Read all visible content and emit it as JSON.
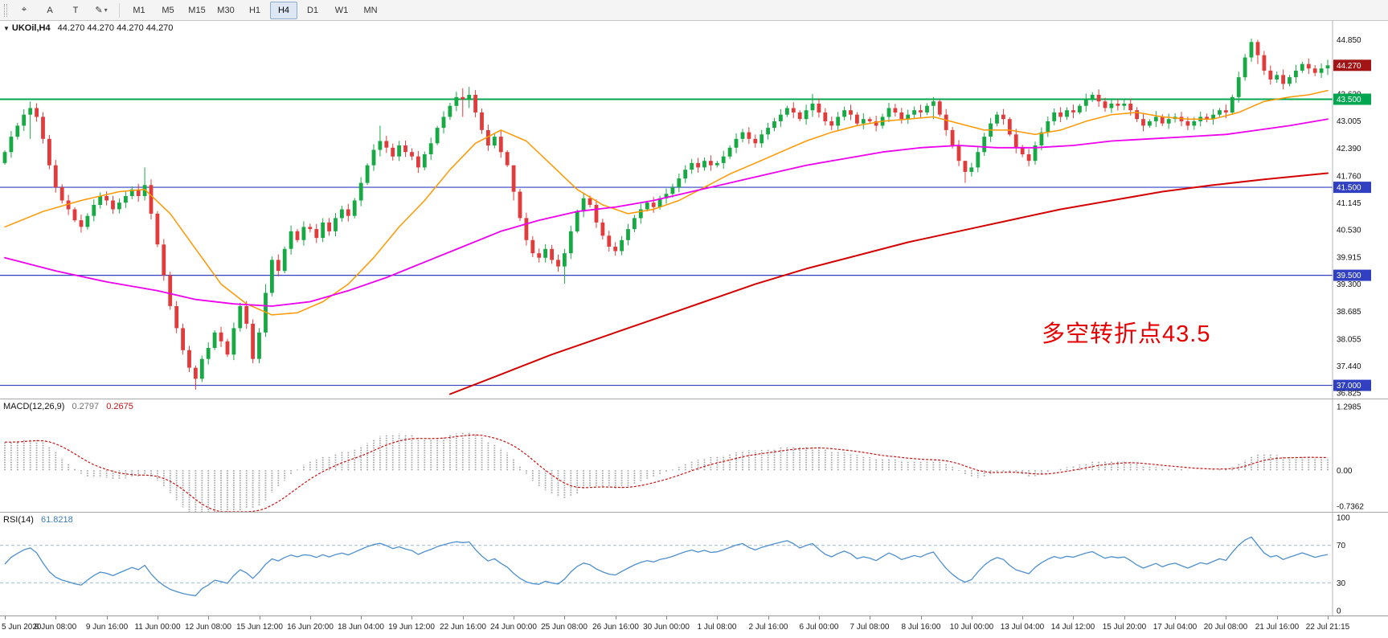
{
  "toolbar": {
    "left_buttons": [
      {
        "name": "crosshair-button",
        "glyph": "⌖"
      },
      {
        "name": "text-label-button",
        "glyph": "A"
      },
      {
        "name": "text-tool-button",
        "glyph": "T"
      },
      {
        "name": "draw-tools-button",
        "glyph": "✎",
        "caret": "▾"
      }
    ],
    "timeframes": [
      "M1",
      "M5",
      "M15",
      "M30",
      "H1",
      "H4",
      "D1",
      "W1",
      "MN"
    ],
    "active_timeframe": "H4"
  },
  "chart_header": {
    "collapse_icon": "▼",
    "symbol": "UKOil,H4",
    "ohlc": "44.270 44.270 44.270 44.270"
  },
  "annotation": {
    "text": "多空转折点43.5",
    "color": "#e60000"
  },
  "colors": {
    "up": "#17a944",
    "down": "#e23b3b",
    "ma_fast": "#ff9800",
    "ma_mid": "#ee00ee",
    "ma_slow": "#d40000",
    "line_blue": "#3040c0",
    "line_green": "#00a650",
    "box_current": "#a31515",
    "box_green": "#00a650",
    "box_blue": "#3040c0",
    "macd_hist": "#a0a0a0",
    "macd_signal": "#cc1111",
    "rsi_line": "#4e8fce",
    "rsi_level": "#9db9d6",
    "axis_text": "#111111"
  },
  "chart_data": {
    "type": "candlestick",
    "symbol": "UKOil",
    "timeframe": "H4",
    "current_price": "44.270",
    "price_range": [
      36.7,
      45.28
    ],
    "price_axis_labels": [
      {
        "text": "44.850",
        "price": 44.85,
        "style": "plain"
      },
      {
        "text": "44.270",
        "price": 44.27,
        "style": "current"
      },
      {
        "text": "43.620",
        "price": 43.62,
        "style": "plain"
      },
      {
        "text": "43.500",
        "price": 43.5,
        "style": "green"
      },
      {
        "text": "43.005",
        "price": 43.005,
        "style": "plain"
      },
      {
        "text": "42.390",
        "price": 42.39,
        "style": "plain"
      },
      {
        "text": "41.760",
        "price": 41.76,
        "style": "plain"
      },
      {
        "text": "41.500",
        "price": 41.5,
        "style": "blue"
      },
      {
        "text": "41.145",
        "price": 41.145,
        "style": "plain"
      },
      {
        "text": "40.530",
        "price": 40.53,
        "style": "plain"
      },
      {
        "text": "39.915",
        "price": 39.915,
        "style": "plain"
      },
      {
        "text": "39.500",
        "price": 39.5,
        "style": "blue"
      },
      {
        "text": "39.300",
        "price": 39.3,
        "style": "plain"
      },
      {
        "text": "38.685",
        "price": 38.685,
        "style": "plain"
      },
      {
        "text": "38.055",
        "price": 38.055,
        "style": "plain"
      },
      {
        "text": "37.440",
        "price": 37.44,
        "style": "plain"
      },
      {
        "text": "37.000",
        "price": 37.0,
        "style": "blue"
      },
      {
        "text": "36.825",
        "price": 36.825,
        "style": "plain"
      }
    ],
    "hlines": [
      {
        "price": 43.5,
        "style": "green",
        "width": 2
      },
      {
        "price": 41.5,
        "style": "blue",
        "width": 1.2
      },
      {
        "price": 39.5,
        "style": "blue",
        "width": 1.2
      },
      {
        "price": 37.0,
        "style": "blue",
        "width": 1.2
      }
    ],
    "candles_closes": [
      42.3,
      42.65,
      42.9,
      43.15,
      43.3,
      43.1,
      42.6,
      42.0,
      41.5,
      41.2,
      41.0,
      40.75,
      40.6,
      40.85,
      41.1,
      41.3,
      41.2,
      41.0,
      41.15,
      41.3,
      41.45,
      41.3,
      41.55,
      40.9,
      40.2,
      39.5,
      38.8,
      38.3,
      37.8,
      37.4,
      37.15,
      37.6,
      37.85,
      38.2,
      38.0,
      37.7,
      38.3,
      38.8,
      38.4,
      37.6,
      38.2,
      39.1,
      39.85,
      39.6,
      40.1,
      40.5,
      40.3,
      40.6,
      40.55,
      40.35,
      40.7,
      40.5,
      40.8,
      41.0,
      40.85,
      41.2,
      41.6,
      42.0,
      42.35,
      42.55,
      42.4,
      42.2,
      42.45,
      42.3,
      42.2,
      41.95,
      42.25,
      42.5,
      42.85,
      43.1,
      43.35,
      43.55,
      43.5,
      43.6,
      43.2,
      42.8,
      42.45,
      42.65,
      42.3,
      42.0,
      41.4,
      40.8,
      40.3,
      40.0,
      39.9,
      40.1,
      39.85,
      39.7,
      40.0,
      40.5,
      40.95,
      41.25,
      41.1,
      40.7,
      40.4,
      40.15,
      40.05,
      40.3,
      40.55,
      40.8,
      41.0,
      41.15,
      41.05,
      41.25,
      41.35,
      41.5,
      41.7,
      41.9,
      42.05,
      41.95,
      42.1,
      42.0,
      42.05,
      42.2,
      42.4,
      42.6,
      42.75,
      42.6,
      42.5,
      42.7,
      42.85,
      43.0,
      43.15,
      43.3,
      43.2,
      43.05,
      43.25,
      43.4,
      43.2,
      43.0,
      42.9,
      43.1,
      43.25,
      43.15,
      42.95,
      43.05,
      43.0,
      42.9,
      43.1,
      43.3,
      43.2,
      43.05,
      43.15,
      43.25,
      43.2,
      43.35,
      43.45,
      43.15,
      42.8,
      42.45,
      42.1,
      41.85,
      41.95,
      42.3,
      42.65,
      42.95,
      43.15,
      43.05,
      42.7,
      42.4,
      42.25,
      42.1,
      42.45,
      42.75,
      43.0,
      43.2,
      43.1,
      43.25,
      43.2,
      43.35,
      43.5,
      43.6,
      43.45,
      43.3,
      43.4,
      43.35,
      43.4,
      43.25,
      43.05,
      42.9,
      43.0,
      43.1,
      42.95,
      43.05,
      43.1,
      43.0,
      42.9,
      43.0,
      43.1,
      43.05,
      43.15,
      43.25,
      43.2,
      43.55,
      44.0,
      44.45,
      44.8,
      44.5,
      44.15,
      43.95,
      44.05,
      43.85,
      44.0,
      44.15,
      44.3,
      44.2,
      44.1,
      44.2,
      44.27
    ],
    "wick_overrides": {
      "4": [
        43.45,
        42.6
      ],
      "22": [
        41.95,
        41.2
      ],
      "30": [
        37.45,
        36.9
      ],
      "41": [
        39.3,
        38.1
      ],
      "59": [
        42.9,
        42.2
      ],
      "72": [
        43.75,
        43.1
      ],
      "73": [
        43.78,
        43.3
      ],
      "80": [
        42.0,
        41.2
      ],
      "88": [
        40.1,
        39.31
      ],
      "127": [
        43.62,
        43.1
      ],
      "146": [
        43.55,
        43.05
      ],
      "151": [
        42.05,
        41.6
      ],
      "196": [
        44.88,
        44.35
      ],
      "197": [
        44.85,
        44.3
      ],
      "208": [
        44.4,
        44.05
      ]
    },
    "ma_lines": [
      {
        "name": "ma-fast-orange",
        "color_key": "ma_fast",
        "width": 1.5,
        "points": [
          [
            0,
            40.6
          ],
          [
            6,
            40.95
          ],
          [
            12,
            41.2
          ],
          [
            18,
            41.4
          ],
          [
            22,
            41.45
          ],
          [
            26,
            40.9
          ],
          [
            30,
            40.1
          ],
          [
            34,
            39.3
          ],
          [
            38,
            38.85
          ],
          [
            42,
            38.6
          ],
          [
            46,
            38.65
          ],
          [
            50,
            38.9
          ],
          [
            54,
            39.3
          ],
          [
            58,
            39.9
          ],
          [
            62,
            40.6
          ],
          [
            66,
            41.2
          ],
          [
            70,
            41.9
          ],
          [
            74,
            42.5
          ],
          [
            78,
            42.8
          ],
          [
            82,
            42.55
          ],
          [
            86,
            42.0
          ],
          [
            90,
            41.45
          ],
          [
            94,
            41.1
          ],
          [
            98,
            40.9
          ],
          [
            102,
            41.0
          ],
          [
            106,
            41.2
          ],
          [
            110,
            41.5
          ],
          [
            114,
            41.8
          ],
          [
            118,
            42.05
          ],
          [
            122,
            42.3
          ],
          [
            126,
            42.55
          ],
          [
            130,
            42.75
          ],
          [
            134,
            42.9
          ],
          [
            138,
            43.0
          ],
          [
            142,
            43.05
          ],
          [
            146,
            43.1
          ],
          [
            150,
            42.95
          ],
          [
            154,
            42.8
          ],
          [
            158,
            42.8
          ],
          [
            162,
            42.7
          ],
          [
            166,
            42.8
          ],
          [
            170,
            43.0
          ],
          [
            174,
            43.15
          ],
          [
            178,
            43.2
          ],
          [
            182,
            43.1
          ],
          [
            186,
            43.05
          ],
          [
            190,
            43.05
          ],
          [
            194,
            43.2
          ],
          [
            198,
            43.45
          ],
          [
            202,
            43.55
          ],
          [
            205,
            43.6
          ],
          [
            208,
            43.7
          ]
        ]
      },
      {
        "name": "ma-mid-magenta",
        "color_key": "ma_mid",
        "width": 1.8,
        "points": [
          [
            0,
            39.9
          ],
          [
            8,
            39.6
          ],
          [
            16,
            39.35
          ],
          [
            24,
            39.15
          ],
          [
            30,
            38.95
          ],
          [
            36,
            38.85
          ],
          [
            42,
            38.8
          ],
          [
            48,
            38.9
          ],
          [
            54,
            39.15
          ],
          [
            60,
            39.45
          ],
          [
            66,
            39.8
          ],
          [
            72,
            40.15
          ],
          [
            78,
            40.5
          ],
          [
            84,
            40.75
          ],
          [
            90,
            40.95
          ],
          [
            96,
            41.05
          ],
          [
            102,
            41.2
          ],
          [
            108,
            41.4
          ],
          [
            114,
            41.6
          ],
          [
            120,
            41.8
          ],
          [
            126,
            42.0
          ],
          [
            132,
            42.15
          ],
          [
            138,
            42.3
          ],
          [
            144,
            42.4
          ],
          [
            150,
            42.45
          ],
          [
            156,
            42.4
          ],
          [
            162,
            42.4
          ],
          [
            168,
            42.45
          ],
          [
            174,
            42.55
          ],
          [
            180,
            42.6
          ],
          [
            186,
            42.65
          ],
          [
            192,
            42.7
          ],
          [
            197,
            42.8
          ],
          [
            202,
            42.9
          ],
          [
            208,
            43.05
          ]
        ]
      },
      {
        "name": "ma-slow-red",
        "color_key": "ma_slow",
        "width": 2,
        "points": [
          [
            70,
            36.8
          ],
          [
            78,
            37.25
          ],
          [
            86,
            37.7
          ],
          [
            94,
            38.1
          ],
          [
            102,
            38.5
          ],
          [
            110,
            38.9
          ],
          [
            118,
            39.3
          ],
          [
            126,
            39.65
          ],
          [
            134,
            39.95
          ],
          [
            142,
            40.25
          ],
          [
            150,
            40.5
          ],
          [
            158,
            40.75
          ],
          [
            166,
            41.0
          ],
          [
            174,
            41.2
          ],
          [
            182,
            41.4
          ],
          [
            190,
            41.55
          ],
          [
            198,
            41.68
          ],
          [
            208,
            41.82
          ]
        ]
      }
    ],
    "time_labels": [
      {
        "text": "5 Jun 2020",
        "bar": 0
      },
      {
        "text": "8 Jun 08:00",
        "bar": 8
      },
      {
        "text": "9 Jun 16:00",
        "bar": 16
      },
      {
        "text": "11 Jun 00:00",
        "bar": 24
      },
      {
        "text": "12 Jun 08:00",
        "bar": 32
      },
      {
        "text": "15 Jun 12:00",
        "bar": 40
      },
      {
        "text": "16 Jun 20:00",
        "bar": 48
      },
      {
        "text": "18 Jun 04:00",
        "bar": 56
      },
      {
        "text": "19 Jun 12:00",
        "bar": 64
      },
      {
        "text": "22 Jun 16:00",
        "bar": 72
      },
      {
        "text": "24 Jun 00:00",
        "bar": 80
      },
      {
        "text": "25 Jun 08:00",
        "bar": 88
      },
      {
        "text": "26 Jun 16:00",
        "bar": 96
      },
      {
        "text": "30 Jun 00:00",
        "bar": 104
      },
      {
        "text": "1 Jul 08:00",
        "bar": 112
      },
      {
        "text": "2 Jul 16:00",
        "bar": 120
      },
      {
        "text": "6 Jul 00:00",
        "bar": 128
      },
      {
        "text": "7 Jul 08:00",
        "bar": 136
      },
      {
        "text": "8 Jul 16:00",
        "bar": 144
      },
      {
        "text": "10 Jul 00:00",
        "bar": 152
      },
      {
        "text": "13 Jul 04:00",
        "bar": 160
      },
      {
        "text": "14 Jul 12:00",
        "bar": 168
      },
      {
        "text": "15 Jul 20:00",
        "bar": 176
      },
      {
        "text": "17 Jul 04:00",
        "bar": 184
      },
      {
        "text": "20 Jul 08:00",
        "bar": 192
      },
      {
        "text": "21 Jul 16:00",
        "bar": 200
      },
      {
        "text": "22 Jul 21:15",
        "bar": 208
      }
    ],
    "macd": {
      "label": "MACD(12,26,9)",
      "value_main": "0.2797",
      "value_signal": "0.2675",
      "params": [
        12,
        26,
        9
      ],
      "seed_offsets": [
        -0.25,
        -0.85
      ],
      "range": [
        -0.85,
        1.45
      ],
      "scale_labels": [
        {
          "text": "1.2985",
          "value": 1.2985
        },
        {
          "text": "0.00",
          "value": 0.0
        },
        {
          "text": "-0.7362",
          "value": -0.7362
        }
      ]
    },
    "rsi": {
      "label": "RSI(14)",
      "value": "61.8218",
      "period": 14,
      "levels": [
        70,
        30
      ],
      "range": [
        -5,
        105
      ],
      "scale_labels": [
        {
          "text": "100",
          "value": 100
        },
        {
          "text": "70",
          "value": 70
        },
        {
          "text": "30",
          "value": 30
        },
        {
          "text": "0",
          "value": 0
        }
      ]
    }
  }
}
